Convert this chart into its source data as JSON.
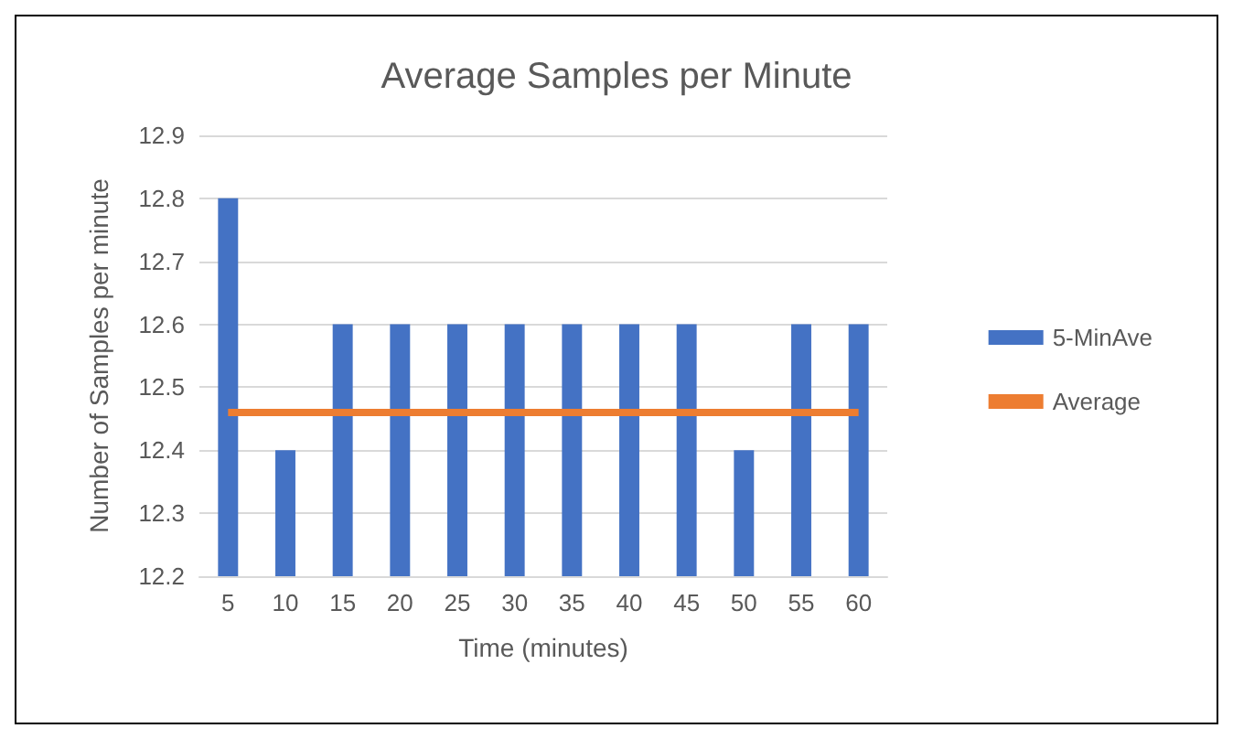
{
  "chart_data": {
    "type": "bar",
    "title": "Average Samples per Minute",
    "xlabel": "Time (minutes)",
    "ylabel": "Number of Samples per minute",
    "categories": [
      "5",
      "10",
      "15",
      "20",
      "25",
      "30",
      "35",
      "40",
      "45",
      "50",
      "55",
      "60"
    ],
    "series": [
      {
        "name": "5-MinAve",
        "color": "#4472c4",
        "values": [
          12.8,
          12.4,
          12.6,
          12.6,
          12.6,
          12.6,
          12.6,
          12.6,
          12.6,
          12.4,
          12.6,
          12.6
        ]
      },
      {
        "name": "Average",
        "type": "line",
        "color": "#ed7d31",
        "values": [
          12.46,
          12.46,
          12.46,
          12.46,
          12.46,
          12.46,
          12.46,
          12.46,
          12.46,
          12.46,
          12.46,
          12.46
        ]
      }
    ],
    "ylim": [
      12.2,
      12.9
    ],
    "yticks": [
      12.2,
      12.3,
      12.4,
      12.5,
      12.6,
      12.7,
      12.8,
      12.9
    ],
    "grid": "y",
    "legend": "right",
    "marker": "none",
    "line_style": "solid"
  }
}
